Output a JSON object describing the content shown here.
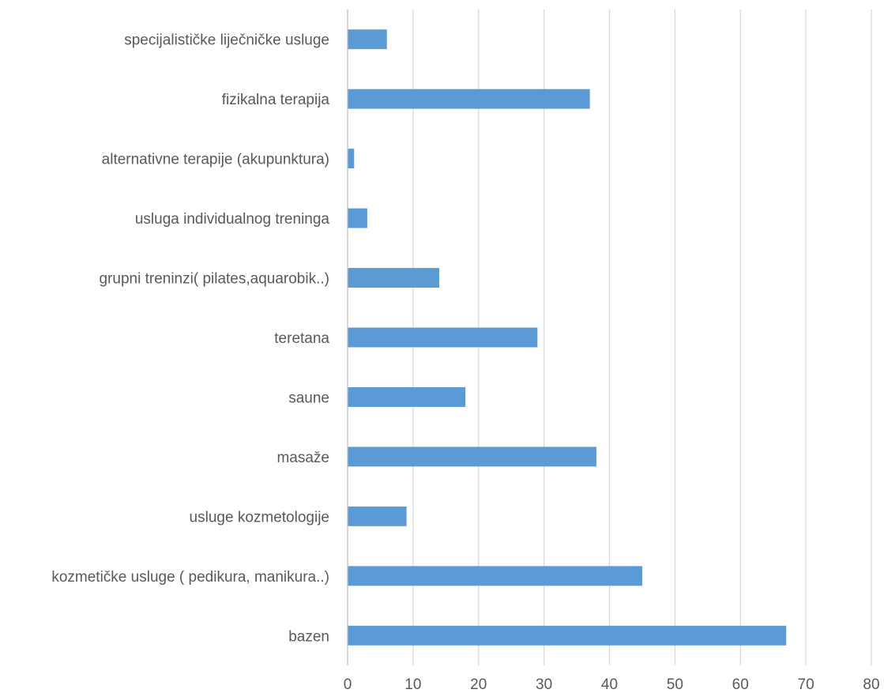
{
  "chart_data": {
    "type": "bar",
    "orientation": "horizontal",
    "title": "",
    "xlabel": "",
    "ylabel": "",
    "categories": [
      "specijalističke liječničke usluge",
      "fizikalna terapija",
      "alternativne terapije (akupunktura)",
      "usluga individualnog treninga",
      "grupni treninzi( pilates,aquarobik..)",
      "teretana",
      "saune",
      "masaže",
      "usluge kozmetologije",
      "kozmetičke usluge ( pedikura, manikura..)",
      "bazen"
    ],
    "values": [
      6,
      37,
      1,
      3,
      14,
      29,
      18,
      38,
      9,
      45,
      67
    ],
    "xlim": [
      0,
      80
    ],
    "x_ticks": [
      "0",
      "10",
      "20",
      "30",
      "40",
      "50",
      "60",
      "70",
      "80"
    ],
    "grid": true,
    "legend": "none",
    "bar_color": "#5b9bd5"
  }
}
